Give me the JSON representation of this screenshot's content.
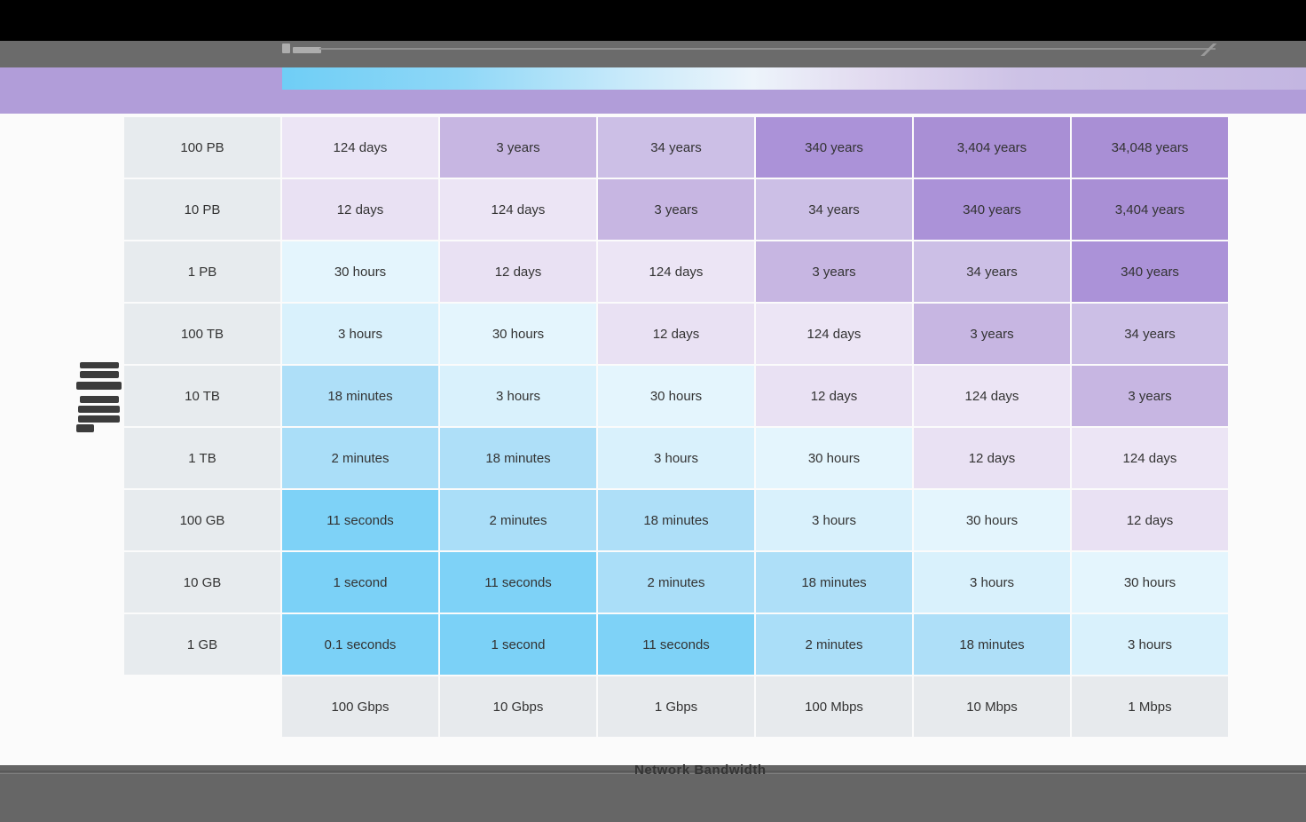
{
  "chart_data": {
    "type": "heatmap",
    "xlabel": "Network Bandwidth",
    "columns": [
      "100 Gbps",
      "10 Gbps",
      "1 Gbps",
      "100 Mbps",
      "10 Mbps",
      "1 Mbps"
    ],
    "rows": [
      "100 PB",
      "10 PB",
      "1 PB",
      "100 TB",
      "10 TB",
      "1 TB",
      "100 GB",
      "10 GB",
      "1 GB"
    ],
    "cells": [
      [
        "124 days",
        "3 years",
        "34 years",
        "340 years",
        "3,404 years",
        "34,048 years"
      ],
      [
        "12 days",
        "124 days",
        "3 years",
        "34 years",
        "340 years",
        "3,404 years"
      ],
      [
        "30 hours",
        "12 days",
        "124 days",
        "3 years",
        "34 years",
        "340 years"
      ],
      [
        "3 hours",
        "30 hours",
        "12 days",
        "124 days",
        "3 years",
        "34 years"
      ],
      [
        "18 minutes",
        "3 hours",
        "30 hours",
        "12 days",
        "124 days",
        "3 years"
      ],
      [
        "2 minutes",
        "18 minutes",
        "3 hours",
        "30 hours",
        "12 days",
        "124 days"
      ],
      [
        "11 seconds",
        "2 minutes",
        "18 minutes",
        "3 hours",
        "30 hours",
        "12 days"
      ],
      [
        "1 second",
        "11 seconds",
        "2 minutes",
        "18 minutes",
        "3 hours",
        "30 hours"
      ],
      [
        "0.1 seconds",
        "1 second",
        "11 seconds",
        "2 minutes",
        "18 minutes",
        "3 hours"
      ]
    ],
    "value_colors": {
      "0.1 seconds": "#7bd1f7",
      "1 second": "#7bd1f7",
      "11 seconds": "#7ed2f7",
      "2 minutes": "#aadef8",
      "18 minutes": "#aedff8",
      "3 hours": "#d9f1fc",
      "30 hours": "#e4f5fd",
      "12 days": "#e9e1f3",
      "124 days": "#ece5f5",
      "3 years": "#c7b6e2",
      "34 years": "#ccbfe6",
      "340 years": "#ab92d8",
      "3,404 years": "#a98fd5",
      "34,048 years": "#a98fd5"
    },
    "row_header_bg": "#e7ebee",
    "col_header_bg": "#e7eaed",
    "legend_position": "top",
    "grid": false
  },
  "colors": {
    "top_bar": "#000000",
    "toolbar": "#6b6b6b",
    "header_purple": "#b19dd9",
    "gradient_left": "#6fcef6",
    "gradient_right": "#c3b6e1",
    "footer": "#666666",
    "page_bg": "#fbfbfb"
  }
}
